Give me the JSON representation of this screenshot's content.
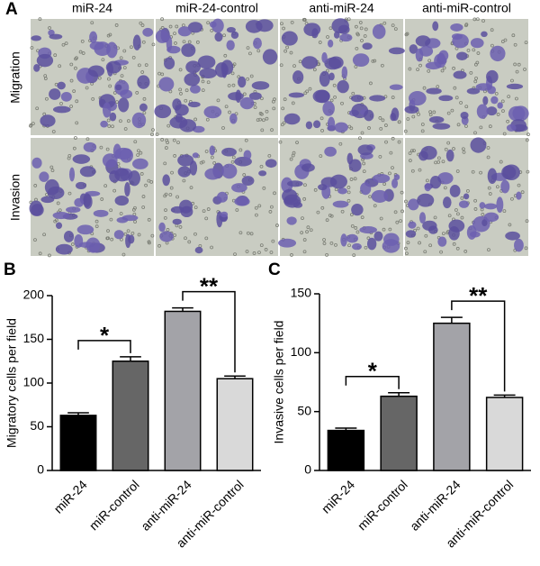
{
  "panel_a": {
    "label": "A",
    "columns": [
      "miR-24",
      "miR-24-control",
      "anti-miR-24",
      "anti-miR-control"
    ],
    "rows": [
      "Migration",
      "Invasion"
    ]
  },
  "chart_data": [
    {
      "type": "bar",
      "panel": "B",
      "ylabel": "Migratory cells per field",
      "categories": [
        "miR-24",
        "miR-control",
        "anti-miR-24",
        "anti-miR-control"
      ],
      "values": [
        63,
        125,
        182,
        105
      ],
      "errors": [
        3,
        5,
        4,
        3
      ],
      "colors": [
        "#000000",
        "#666666",
        "#a3a3a8",
        "#d9d9d9"
      ],
      "ylim": [
        0,
        200
      ],
      "yticks": [
        0,
        50,
        100,
        150,
        200
      ],
      "annotations": [
        {
          "text": "*",
          "from": "miR-24",
          "to": "miR-control"
        },
        {
          "text": "**",
          "from": "anti-miR-24",
          "to": "anti-miR-control"
        }
      ]
    },
    {
      "type": "bar",
      "panel": "C",
      "ylabel": "Invasive cells per field",
      "categories": [
        "miR-24",
        "miR-control",
        "anti-miR-24",
        "anti-miR-control"
      ],
      "values": [
        34,
        63,
        125,
        62
      ],
      "errors": [
        2,
        3,
        5,
        2
      ],
      "colors": [
        "#000000",
        "#666666",
        "#a3a3a8",
        "#d9d9d9"
      ],
      "ylim": [
        0,
        150
      ],
      "yticks": [
        0,
        50,
        100,
        150
      ],
      "annotations": [
        {
          "text": "*",
          "from": "miR-24",
          "to": "miR-control"
        },
        {
          "text": "**",
          "from": "anti-miR-24",
          "to": "anti-miR-control"
        }
      ]
    }
  ]
}
